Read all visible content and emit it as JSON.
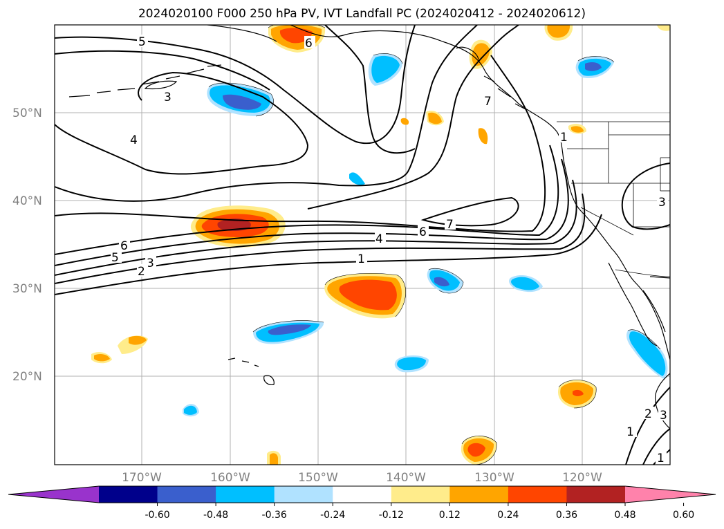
{
  "title": "2024020100 F000 250 hPa PV, IVT Landfall PC (2024020412 - 2024020612)",
  "map": {
    "lat_labels": [
      "50°N",
      "40°N",
      "30°N",
      "20°N"
    ],
    "lon_labels": [
      "170°W",
      "160°W",
      "150°W",
      "140°W",
      "130°W",
      "120°W"
    ],
    "grid": true,
    "contour_labels": [
      "5",
      "3",
      "4",
      "6",
      "7",
      "6",
      "5",
      "3",
      "2",
      "6",
      "4",
      "1",
      "7",
      "1",
      "3",
      "2",
      "1",
      "3",
      "1"
    ]
  },
  "colorbar": {
    "ticks": [
      "-0.60",
      "-0.48",
      "-0.36",
      "-0.24",
      "-0.12",
      "0.12",
      "0.24",
      "0.36",
      "0.48",
      "0.60"
    ],
    "colors": [
      "#9933cc",
      "#00008b",
      "#3a5fcd",
      "#00bfff",
      "#b0e2ff",
      "#ffffff",
      "#ffec8b",
      "#ffa500",
      "#ff4500",
      "#b22222",
      "#ff82ab"
    ],
    "extend": "both"
  }
}
